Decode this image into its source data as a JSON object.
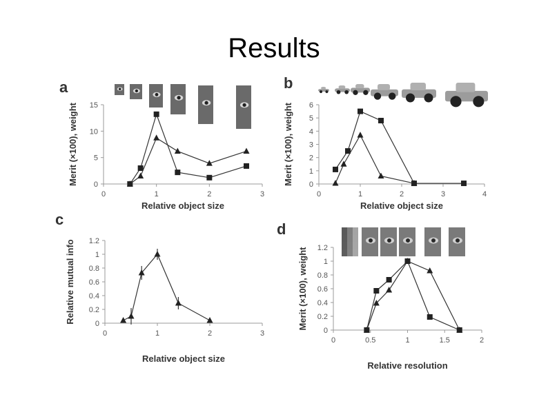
{
  "title": "Results",
  "chart_data": [
    {
      "panel": "a",
      "type": "line",
      "xlabel": "Relative object size",
      "ylabel": "Merit (×100), weight",
      "xlim": [
        0,
        3
      ],
      "ylim": [
        0,
        15
      ],
      "xticks": [
        0,
        1,
        2,
        3
      ],
      "yticks": [
        0,
        5,
        10,
        15
      ],
      "xtick_labels": [
        "0",
        "1",
        "2",
        "3"
      ],
      "ytick_labels": [
        "0",
        "5",
        "10",
        "15"
      ],
      "thumbnails": "eye",
      "series": [
        {
          "name": "merit",
          "marker": "square",
          "x": [
            0.5,
            0.7,
            1.0,
            1.4,
            2.0,
            2.7
          ],
          "y": [
            0,
            3,
            13.2,
            2.2,
            1.2,
            3.4
          ]
        },
        {
          "name": "weight",
          "marker": "triangle",
          "x": [
            0.5,
            0.7,
            1.0,
            1.4,
            2.0,
            2.7
          ],
          "y": [
            0,
            1.5,
            8.7,
            6.2,
            3.9,
            6.2
          ]
        }
      ]
    },
    {
      "panel": "b",
      "type": "line",
      "xlabel": "Relative object size",
      "ylabel": "Merit (×100), weight",
      "xlim": [
        0,
        4
      ],
      "ylim": [
        0,
        6
      ],
      "xticks": [
        0,
        1,
        2,
        3,
        4
      ],
      "yticks": [
        0,
        1,
        2,
        3,
        4,
        5,
        6
      ],
      "xtick_labels": [
        "0",
        "1",
        "2",
        "3",
        "4"
      ],
      "ytick_labels": [
        "0",
        "1",
        "2",
        "3",
        "4",
        "5",
        "6"
      ],
      "thumbnails": "car",
      "series": [
        {
          "name": "merit",
          "marker": "square",
          "x": [
            0.4,
            0.7,
            1.0,
            1.5,
            2.3,
            3.5
          ],
          "y": [
            1.1,
            2.5,
            5.5,
            4.8,
            0.05,
            0.05
          ]
        },
        {
          "name": "weight",
          "marker": "triangle",
          "x": [
            0.4,
            0.6,
            1.0,
            1.5,
            2.3
          ],
          "y": [
            0.05,
            1.5,
            3.7,
            0.6,
            0.05
          ]
        }
      ]
    },
    {
      "panel": "c",
      "type": "line",
      "xlabel": "Relative object size",
      "ylabel": "Relative mutual info",
      "xlim": [
        0,
        3
      ],
      "ylim": [
        0,
        1.2
      ],
      "xticks": [
        0,
        1,
        2,
        3
      ],
      "yticks": [
        0,
        0.2,
        0.4,
        0.6,
        0.8,
        1,
        1.2
      ],
      "xtick_labels": [
        "0",
        "1",
        "2",
        "3"
      ],
      "ytick_labels": [
        "0",
        "0.2",
        "0.4",
        "0.6",
        "0.8",
        "1",
        "1.2"
      ],
      "thumbnails": "none",
      "series": [
        {
          "name": "mutual info",
          "marker": "triangle",
          "x": [
            0.35,
            0.5,
            0.7,
            1.0,
            1.4,
            2.0
          ],
          "y": [
            0.04,
            0.1,
            0.73,
            1.0,
            0.29,
            0.04
          ],
          "err": [
            0,
            0.12,
            0.1,
            0.08,
            0.09,
            0.02
          ]
        }
      ]
    },
    {
      "panel": "d",
      "type": "line",
      "xlabel": "Relative resolution",
      "ylabel": "Merit (×100), weight",
      "xlim": [
        0,
        2
      ],
      "ylim": [
        0,
        1.2
      ],
      "xticks": [
        0,
        0.5,
        1,
        1.5,
        2
      ],
      "yticks": [
        0,
        0.2,
        0.4,
        0.6,
        0.8,
        1,
        1.2
      ],
      "xtick_labels": [
        "0",
        "0.5",
        "1",
        "1.5",
        "2"
      ],
      "ytick_labels": [
        "0",
        "0.2",
        "0.4",
        "0.6",
        "0.8",
        "1",
        "1.2"
      ],
      "thumbnails": "eye-resolution",
      "series": [
        {
          "name": "merit",
          "marker": "square",
          "x": [
            0.45,
            0.58,
            0.75,
            1.0,
            1.3,
            1.7
          ],
          "y": [
            0,
            0.57,
            0.73,
            1.0,
            0.19,
            0
          ]
        },
        {
          "name": "weight",
          "marker": "triangle",
          "x": [
            0.45,
            0.58,
            0.75,
            1.0,
            1.3,
            1.7
          ],
          "y": [
            0,
            0.39,
            0.58,
            1.0,
            0.86,
            0
          ]
        }
      ]
    }
  ]
}
